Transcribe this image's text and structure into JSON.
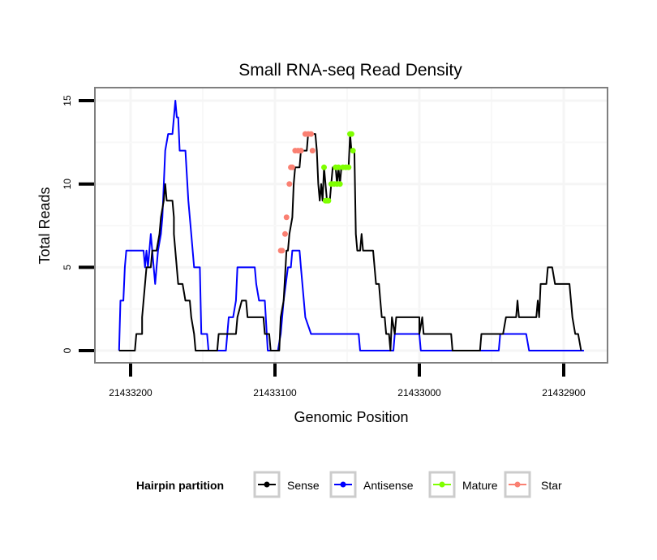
{
  "chart_data": {
    "type": "line",
    "title": "Small RNA-seq Read Density",
    "xlabel": "Genomic Position",
    "ylabel": "Total Reads",
    "x_reversed": true,
    "xlim": [
      21433225,
      21432870
    ],
    "ylim": [
      0,
      15.5
    ],
    "x_ticks": [
      21433200,
      21433100,
      21433000,
      21432900
    ],
    "x_tick_labels": [
      "21433200",
      "21433100",
      "21433000",
      "21432900"
    ],
    "y_ticks": [
      0,
      5,
      10,
      15
    ],
    "y_tick_labels": [
      "0",
      "5",
      "10",
      "15"
    ],
    "grid": true,
    "legend": {
      "title": "Hairpin partition",
      "position": "bottom",
      "entries": [
        {
          "name": "Sense",
          "color": "#000000"
        },
        {
          "name": "Antisense",
          "color": "#0000ff"
        },
        {
          "name": "Mature",
          "color": "#7fff00"
        },
        {
          "name": "Star",
          "color": "#fa8072"
        }
      ]
    },
    "series": [
      {
        "name": "Antisense",
        "color": "#0000ff",
        "kind": "line",
        "points": [
          [
            21433208,
            0
          ],
          [
            21433207,
            3
          ],
          [
            21433205,
            3
          ],
          [
            21433204,
            5
          ],
          [
            21433203,
            6
          ],
          [
            21433191,
            6
          ],
          [
            21433190,
            5
          ],
          [
            21433189,
            6
          ],
          [
            21433188,
            5
          ],
          [
            21433186,
            7
          ],
          [
            21433184,
            5
          ],
          [
            21433183,
            4
          ],
          [
            21433182,
            5
          ],
          [
            21433181,
            6
          ],
          [
            21433179,
            7
          ],
          [
            21433178,
            8
          ],
          [
            21433176,
            12
          ],
          [
            21433174,
            13
          ],
          [
            21433171,
            13
          ],
          [
            21433169,
            15
          ],
          [
            21433168,
            14
          ],
          [
            21433167,
            14
          ],
          [
            21433166,
            12
          ],
          [
            21433162,
            12
          ],
          [
            21433160,
            9
          ],
          [
            21433158,
            7
          ],
          [
            21433156,
            5
          ],
          [
            21433152,
            5
          ],
          [
            21433151,
            1
          ],
          [
            21433147,
            1
          ],
          [
            21433146,
            0
          ],
          [
            21433134,
            0
          ],
          [
            21433132,
            2
          ],
          [
            21433129,
            2
          ],
          [
            21433127,
            3
          ],
          [
            21433126,
            5
          ],
          [
            21433114,
            5
          ],
          [
            21433113,
            4
          ],
          [
            21433111,
            3
          ],
          [
            21433107,
            3
          ],
          [
            21433105,
            0
          ],
          [
            21433098,
            0
          ],
          [
            21433096,
            1
          ],
          [
            21433094,
            3
          ],
          [
            21433091,
            5
          ],
          [
            21433089,
            5
          ],
          [
            21433088,
            6
          ],
          [
            21433083,
            6
          ],
          [
            21433082,
            5
          ],
          [
            21433081,
            4
          ],
          [
            21433079,
            2
          ],
          [
            21433075,
            1
          ],
          [
            21433042,
            1
          ],
          [
            21433041,
            0
          ],
          [
            21433018,
            0
          ],
          [
            21433017,
            1
          ],
          [
            21433000,
            1
          ],
          [
            21432999,
            0
          ],
          [
            21432945,
            0
          ],
          [
            21432944,
            1
          ],
          [
            21432926,
            1
          ],
          [
            21432924,
            0
          ],
          [
            21432886,
            0
          ]
        ]
      },
      {
        "name": "Sense",
        "color": "#000000",
        "kind": "line",
        "points": [
          [
            21433208,
            0
          ],
          [
            21433197,
            0
          ],
          [
            21433196,
            1
          ],
          [
            21433192,
            1
          ],
          [
            21433192,
            2
          ],
          [
            21433191,
            3
          ],
          [
            21433190,
            4
          ],
          [
            21433189,
            5
          ],
          [
            21433186,
            5
          ],
          [
            21433185,
            6
          ],
          [
            21433182,
            6
          ],
          [
            21433180,
            7
          ],
          [
            21433179,
            8
          ],
          [
            21433177,
            9
          ],
          [
            21433176,
            10
          ],
          [
            21433175,
            9
          ],
          [
            21433171,
            9
          ],
          [
            21433170,
            8
          ],
          [
            21433170,
            7
          ],
          [
            21433167,
            4
          ],
          [
            21433164,
            4
          ],
          [
            21433162,
            3
          ],
          [
            21433159,
            3
          ],
          [
            21433158,
            2
          ],
          [
            21433156,
            1
          ],
          [
            21433155,
            0
          ],
          [
            21433140,
            0
          ],
          [
            21433139,
            1
          ],
          [
            21433127,
            1
          ],
          [
            21433126,
            2
          ],
          [
            21433123,
            3
          ],
          [
            21433120,
            3
          ],
          [
            21433119,
            2
          ],
          [
            21433108,
            2
          ],
          [
            21433107,
            1
          ],
          [
            21433104,
            1
          ],
          [
            21433103,
            0
          ],
          [
            21433097,
            0
          ],
          [
            21433096,
            2
          ],
          [
            21433094,
            3
          ],
          [
            21433092,
            6
          ],
          [
            21433091,
            6
          ],
          [
            21433090,
            7
          ],
          [
            21433088,
            8
          ],
          [
            21433087,
            10
          ],
          [
            21433086,
            11
          ],
          [
            21433083,
            11
          ],
          [
            21433082,
            12
          ],
          [
            21433078,
            12
          ],
          [
            21433077,
            13
          ],
          [
            21433072,
            13
          ],
          [
            21433071,
            12
          ],
          [
            21433070,
            10
          ],
          [
            21433069,
            9
          ],
          [
            21433068,
            10
          ],
          [
            21433067,
            9
          ],
          [
            21433066,
            11
          ],
          [
            21433064,
            9
          ],
          [
            21433062,
            9
          ],
          [
            21433061,
            10
          ],
          [
            21433060,
            11
          ],
          [
            21433058,
            11
          ],
          [
            21433057,
            10
          ],
          [
            21433056,
            11
          ],
          [
            21433055,
            10
          ],
          [
            21433054,
            11
          ],
          [
            21433049,
            11
          ],
          [
            21433048,
            13
          ],
          [
            21433047,
            12
          ],
          [
            21433045,
            12
          ],
          [
            21433044,
            7
          ],
          [
            21433043,
            6
          ],
          [
            21433041,
            6
          ],
          [
            21433040,
            7
          ],
          [
            21433039,
            6
          ],
          [
            21433032,
            6
          ],
          [
            21433030,
            4
          ],
          [
            21433028,
            4
          ],
          [
            21433027,
            3
          ],
          [
            21433026,
            2
          ],
          [
            21433024,
            2
          ],
          [
            21433023,
            1
          ],
          [
            21433021,
            1
          ],
          [
            21433020,
            0
          ],
          [
            21433019,
            2
          ],
          [
            21433017,
            1
          ],
          [
            21433016,
            2
          ],
          [
            21433000,
            2
          ],
          [
            21433000,
            1
          ],
          [
            21432998,
            2
          ],
          [
            21432998,
            2
          ],
          [
            21432997,
            1
          ],
          [
            21432978,
            1
          ],
          [
            21432977,
            0
          ],
          [
            21432958,
            0
          ],
          [
            21432957,
            1
          ],
          [
            21432942,
            1
          ],
          [
            21432940,
            2
          ],
          [
            21432933,
            2
          ],
          [
            21432932,
            3
          ],
          [
            21432931,
            2
          ],
          [
            21432919,
            2
          ],
          [
            21432918,
            3
          ],
          [
            21432917,
            2
          ],
          [
            21432916,
            4
          ],
          [
            21432915,
            4
          ],
          [
            21432912,
            4
          ],
          [
            21432911,
            5
          ],
          [
            21432908,
            5
          ],
          [
            21432906,
            4
          ],
          [
            21432896,
            4
          ],
          [
            21432894,
            2
          ],
          [
            21432892,
            1
          ],
          [
            21432890,
            1
          ],
          [
            21432888,
            0
          ]
        ]
      },
      {
        "name": "Star",
        "color": "#fa8072",
        "kind": "points",
        "points": [
          [
            21433096,
            6
          ],
          [
            21433095,
            6
          ],
          [
            21433093,
            7
          ],
          [
            21433092,
            8
          ],
          [
            21433090,
            10
          ],
          [
            21433089,
            11
          ],
          [
            21433088,
            11
          ],
          [
            21433086,
            12
          ],
          [
            21433084,
            12
          ],
          [
            21433082,
            12
          ],
          [
            21433079,
            13
          ],
          [
            21433077,
            13
          ],
          [
            21433075,
            13
          ],
          [
            21433074,
            12
          ]
        ]
      },
      {
        "name": "Mature",
        "color": "#7fff00",
        "kind": "points",
        "points": [
          [
            21433066,
            11
          ],
          [
            21433065,
            9
          ],
          [
            21433064,
            9
          ],
          [
            21433063,
            9
          ],
          [
            21433061,
            10
          ],
          [
            21433059,
            10
          ],
          [
            21433058,
            11
          ],
          [
            21433057,
            10
          ],
          [
            21433056,
            11
          ],
          [
            21433055,
            10
          ],
          [
            21433053,
            11
          ],
          [
            21433051,
            11
          ],
          [
            21433049,
            11
          ],
          [
            21433048,
            13
          ],
          [
            21433047,
            13
          ],
          [
            21433046,
            12
          ]
        ]
      }
    ]
  }
}
